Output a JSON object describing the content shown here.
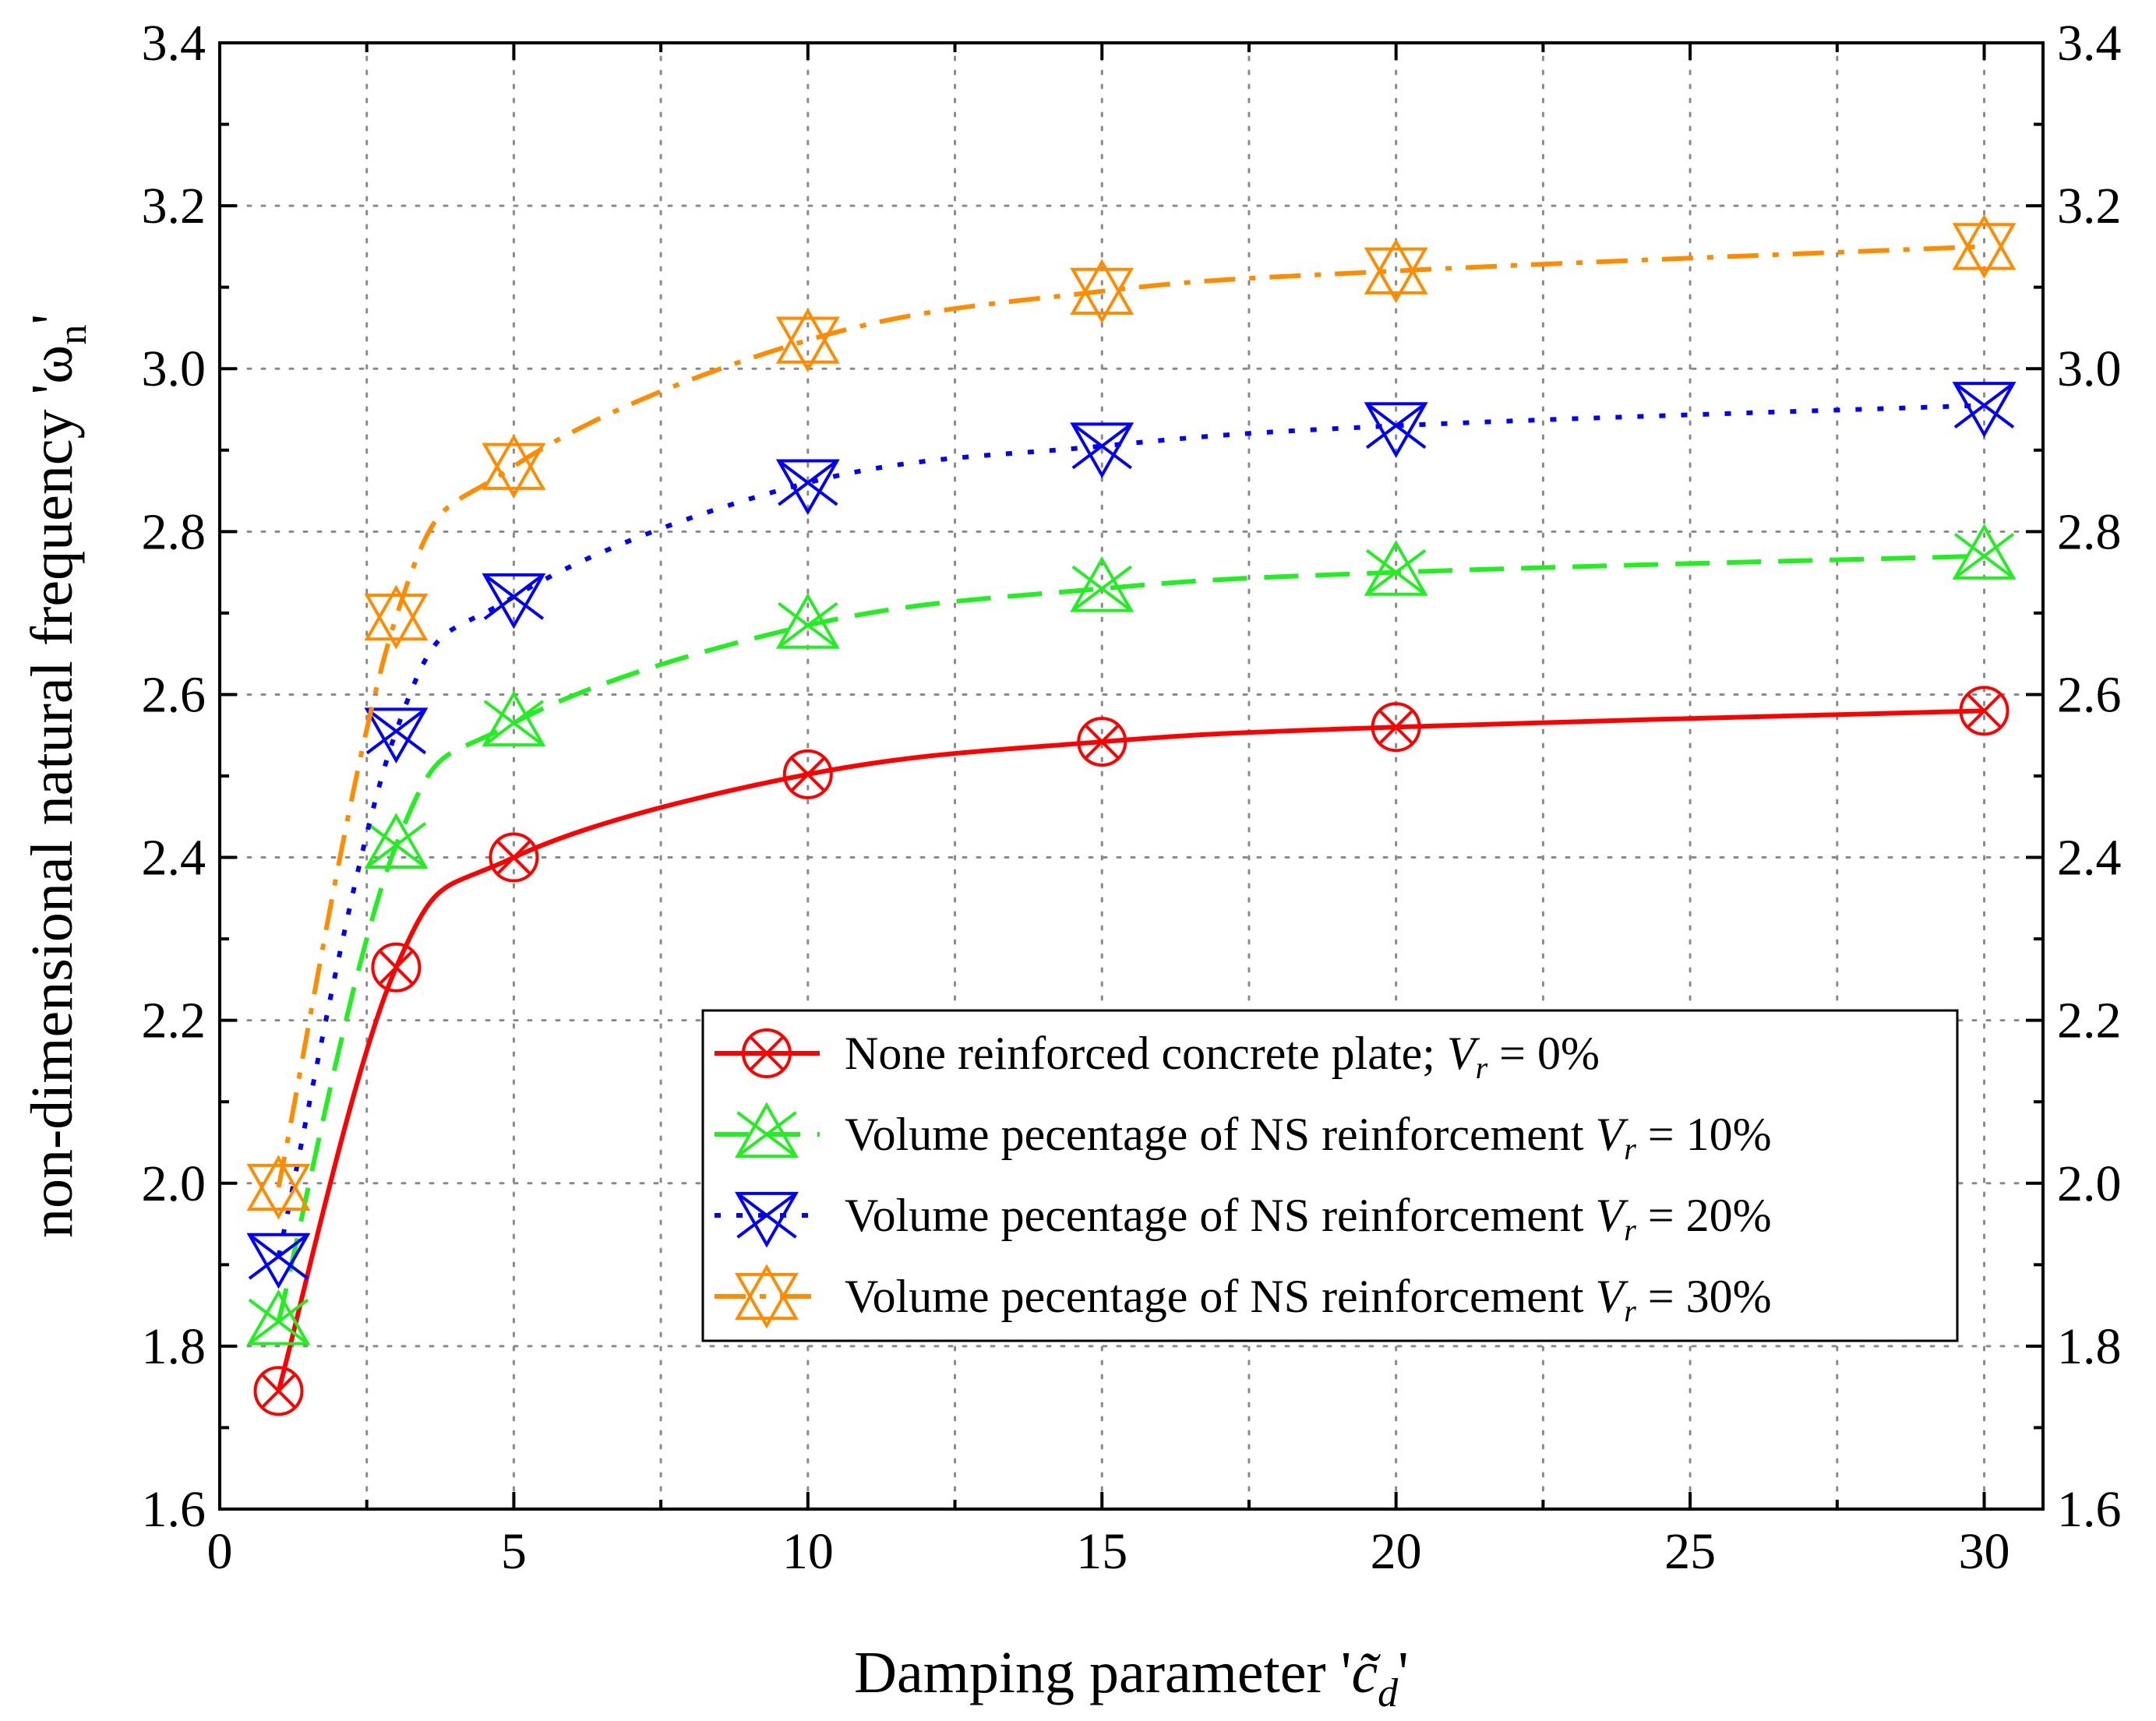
{
  "chart_data": {
    "type": "line",
    "xlabel_prefix": "Damping parameter '",
    "xlabel_symbol": "c̃",
    "xlabel_subscript": "d",
    "xlabel_suffix": "'",
    "ylabel_prefix": "non-dimensional natural frequency 'ω",
    "ylabel_subscript": "n",
    "ylabel_suffix": "'",
    "xlim": [
      0,
      31
    ],
    "ylim": [
      1.6,
      3.4
    ],
    "x_ticks": [
      0,
      5,
      10,
      15,
      20,
      25,
      30
    ],
    "x_tick_labels": [
      "0",
      "5",
      "10",
      "15",
      "20",
      "25",
      "30"
    ],
    "y_ticks": [
      1.6,
      1.8,
      2.0,
      2.2,
      2.4,
      2.6,
      2.8,
      3.0,
      3.2,
      3.4
    ],
    "y_tick_labels": [
      "1.6",
      "1.8",
      "2.0",
      "2.2",
      "2.4",
      "2.6",
      "2.8",
      "3.0",
      "3.2",
      "3.4"
    ],
    "grid": true,
    "legend_position": "center-right",
    "x": [
      1,
      3,
      5,
      10,
      15,
      20,
      30
    ],
    "series": [
      {
        "legend_prefix": "None reinforced concrete plate; ",
        "legend_var": "V",
        "legend_sub": "r",
        "legend_suffix": " = 0%",
        "color": "#ff0000",
        "line_style": "solid",
        "marker": "circle-x",
        "values": [
          1.745,
          2.265,
          2.4,
          2.502,
          2.542,
          2.56,
          2.58
        ]
      },
      {
        "legend_prefix": "Volume pecentage of NS reinforcement ",
        "legend_var": "V",
        "legend_sub": "r",
        "legend_suffix": " = 10%",
        "color": "#22ee22",
        "line_style": "dashed",
        "marker": "triangle-x",
        "values": [
          1.83,
          2.415,
          2.565,
          2.685,
          2.73,
          2.75,
          2.77
        ]
      },
      {
        "legend_prefix": "Volume pecentage of NS reinforcement ",
        "legend_var": "V",
        "legend_sub": "r",
        "legend_suffix": " = 20%",
        "color": "#0000ff",
        "line_style": "dotted",
        "marker": "triangle-down-x",
        "values": [
          1.91,
          2.555,
          2.72,
          2.86,
          2.905,
          2.93,
          2.955
        ]
      },
      {
        "legend_prefix": "Volume pecentage of NS reinforcement ",
        "legend_var": "V",
        "legend_sub": "r",
        "legend_suffix": " = 30%",
        "color": "#ff8c00",
        "line_style": "dash-dot",
        "marker": "star-x",
        "values": [
          1.995,
          2.695,
          2.88,
          3.035,
          3.095,
          3.12,
          3.15
        ]
      }
    ]
  }
}
